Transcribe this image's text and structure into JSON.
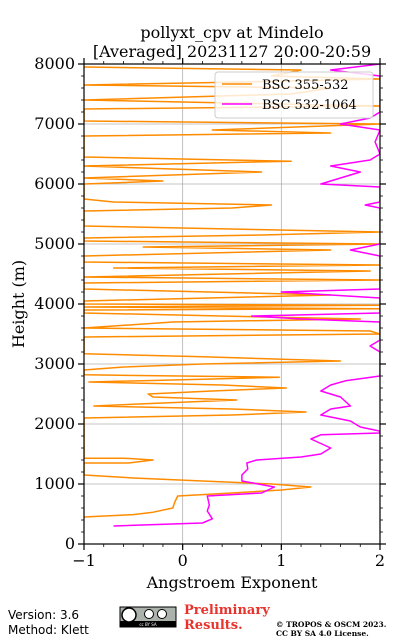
{
  "chart_data": {
    "type": "line",
    "title_line1": "pollyxt_cpv at Mindelo",
    "title_line2": "[Averaged] 20231127 20:00-20:59",
    "xlabel": "Angstroem Exponent",
    "ylabel": "Height (m)",
    "xlim": [
      -1,
      2
    ],
    "ylim": [
      0,
      8000
    ],
    "xticks": [
      "−1",
      "0",
      "1",
      "2"
    ],
    "yticks": [
      "0",
      "1000",
      "2000",
      "3000",
      "4000",
      "5000",
      "6000",
      "7000",
      "8000"
    ],
    "grid": true,
    "legend_position": "top-right",
    "series": [
      {
        "name": "BSC 355-532",
        "color": "#ff8c00",
        "points": [
          [
            -1.0,
            450
          ],
          [
            -0.5,
            490
          ],
          [
            -0.3,
            530
          ],
          [
            -0.1,
            600
          ],
          [
            -0.08,
            700
          ],
          [
            -0.05,
            800
          ],
          [
            0.5,
            850
          ],
          [
            1.0,
            900
          ],
          [
            1.3,
            950
          ],
          [
            0.9,
            1000
          ],
          [
            0.2,
            1050
          ],
          [
            -0.5,
            1100
          ],
          [
            -1.0,
            1150
          ],
          [
            -1.0,
            1350
          ],
          [
            -0.55,
            1350
          ],
          [
            -0.3,
            1400
          ],
          [
            -0.6,
            1430
          ],
          [
            -1.0,
            1430
          ],
          [
            -1.0,
            2100
          ],
          [
            0.5,
            2150
          ],
          [
            1.25,
            2200
          ],
          [
            0.5,
            2250
          ],
          [
            -0.9,
            2300
          ],
          [
            -0.2,
            2350
          ],
          [
            0.55,
            2400
          ],
          [
            -0.3,
            2450
          ],
          [
            -0.35,
            2500
          ],
          [
            0.3,
            2550
          ],
          [
            1.05,
            2600
          ],
          [
            0.4,
            2650
          ],
          [
            -0.95,
            2700
          ],
          [
            0.3,
            2750
          ],
          [
            0.98,
            2780
          ],
          [
            -1.0,
            2820
          ],
          [
            -1.0,
            2900
          ],
          [
            -0.6,
            2950
          ],
          [
            0.2,
            3000
          ],
          [
            1.6,
            3050
          ],
          [
            0.2,
            3120
          ],
          [
            -1.0,
            3170
          ],
          [
            -1.0,
            3450
          ],
          [
            2.0,
            3500
          ],
          [
            1.9,
            3550
          ],
          [
            -1.0,
            3600
          ],
          [
            -0.1,
            3700
          ],
          [
            1.8,
            3750
          ],
          [
            -1.0,
            3850
          ],
          [
            -1.0,
            3900
          ],
          [
            2.0,
            3920
          ],
          [
            -1.0,
            3950
          ],
          [
            2.0,
            3980
          ],
          [
            -1.0,
            4000
          ],
          [
            -1.0,
            4050
          ],
          [
            1.5,
            4150
          ],
          [
            -1.0,
            4250
          ],
          [
            -1.0,
            4350
          ],
          [
            2.0,
            4400
          ],
          [
            -1.0,
            4450
          ],
          [
            1.9,
            4550
          ],
          [
            -0.7,
            4600
          ],
          [
            2.0,
            4650
          ],
          [
            -1.0,
            4700
          ],
          [
            -1.0,
            4800
          ],
          [
            1.5,
            4900
          ],
          [
            -0.4,
            4950
          ],
          [
            2.0,
            5000
          ],
          [
            -1.0,
            5050
          ],
          [
            -1.0,
            5100
          ],
          [
            0.8,
            5150
          ],
          [
            2.0,
            5200
          ],
          [
            -1.0,
            5300
          ],
          [
            -1.0,
            5550
          ],
          [
            0.5,
            5600
          ],
          [
            0.9,
            5650
          ],
          [
            -0.7,
            5700
          ],
          [
            -1.0,
            5750
          ],
          [
            -1.0,
            6000
          ],
          [
            -0.2,
            6050
          ],
          [
            -1.0,
            6100
          ],
          [
            0.8,
            6200
          ],
          [
            -1.0,
            6300
          ],
          [
            1.1,
            6380
          ],
          [
            -1.0,
            6450
          ],
          [
            -1.0,
            6800
          ],
          [
            1.5,
            6850
          ],
          [
            0.3,
            6900
          ],
          [
            2.0,
            7000
          ],
          [
            -1.0,
            7050
          ],
          [
            -1.0,
            7250
          ],
          [
            2.0,
            7300
          ],
          [
            -1.0,
            7400
          ],
          [
            1.1,
            7500
          ],
          [
            1.5,
            7600
          ],
          [
            -1.0,
            7650
          ],
          [
            0.6,
            7700
          ],
          [
            2.0,
            7750
          ],
          [
            0.9,
            7800
          ],
          [
            1.2,
            7900
          ],
          [
            -1.0,
            7950
          ]
        ]
      },
      {
        "name": "BSC 532-1064",
        "color": "#ff00ff",
        "points": [
          [
            -0.7,
            300
          ],
          [
            0.2,
            350
          ],
          [
            0.3,
            420
          ],
          [
            0.25,
            550
          ],
          [
            0.27,
            650
          ],
          [
            0.25,
            800
          ],
          [
            0.8,
            850
          ],
          [
            0.93,
            950
          ],
          [
            0.6,
            1050
          ],
          [
            0.6,
            1150
          ],
          [
            0.66,
            1250
          ],
          [
            0.65,
            1350
          ],
          [
            0.75,
            1400
          ],
          [
            1.2,
            1450
          ],
          [
            1.4,
            1500
          ],
          [
            1.5,
            1600
          ],
          [
            1.3,
            1750
          ],
          [
            1.4,
            1820
          ],
          [
            2.0,
            1850
          ],
          [
            2.0,
            1880
          ],
          [
            1.8,
            1950
          ],
          [
            1.7,
            2050
          ],
          [
            1.4,
            2150
          ],
          [
            1.5,
            2250
          ],
          [
            1.7,
            2300
          ],
          [
            1.6,
            2450
          ],
          [
            1.4,
            2550
          ],
          [
            1.5,
            2650
          ],
          [
            1.65,
            2720
          ],
          [
            2.0,
            2800
          ],
          [
            2.0,
            3200
          ],
          [
            1.9,
            3300
          ],
          [
            2.0,
            3400
          ],
          [
            2.0,
            3700
          ],
          [
            1.2,
            3750
          ],
          [
            0.7,
            3800
          ],
          [
            2.0,
            3850
          ],
          [
            2.0,
            4100
          ],
          [
            1.0,
            4200
          ],
          [
            2.0,
            4250
          ],
          [
            2.0,
            4800
          ],
          [
            1.7,
            4900
          ],
          [
            2.0,
            5000
          ],
          [
            2.0,
            5600
          ],
          [
            1.85,
            5650
          ],
          [
            2.0,
            5700
          ],
          [
            2.0,
            5950
          ],
          [
            1.4,
            6000
          ],
          [
            1.6,
            6100
          ],
          [
            1.8,
            6200
          ],
          [
            1.5,
            6300
          ],
          [
            1.9,
            6400
          ],
          [
            2.0,
            6500
          ],
          [
            1.95,
            6700
          ],
          [
            2.0,
            6900
          ],
          [
            1.6,
            7000
          ],
          [
            1.9,
            7100
          ],
          [
            2.0,
            7200
          ],
          [
            2.0,
            7800
          ],
          [
            1.5,
            7900
          ],
          [
            2.0,
            8000
          ]
        ]
      }
    ]
  },
  "footer": {
    "version": "Version: 3.6",
    "method": "Method: Klett",
    "cc_badge": "cc BY SA",
    "preliminary_line1": "Preliminary",
    "preliminary_line2": "Results.",
    "copyright_line1": "© TROPOS & OSCM 2023.",
    "copyright_line2": "CC BY SA 4.0 License.",
    "preliminary_color": "#e8322c"
  }
}
